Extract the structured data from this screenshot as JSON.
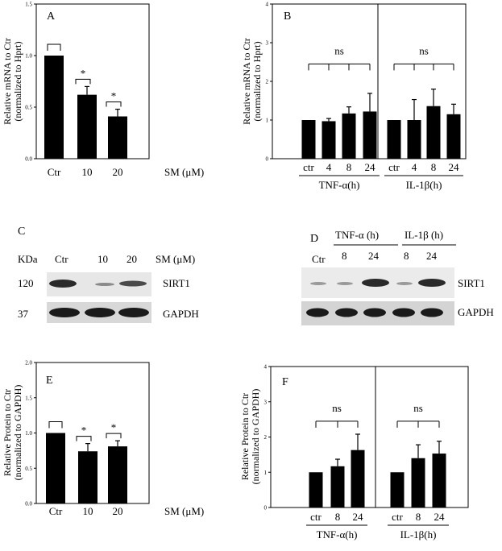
{
  "chart_data": [
    {
      "type": "bar",
      "panel": "A",
      "categories": [
        "Ctr",
        "10",
        "20"
      ],
      "values": [
        1.0,
        0.62,
        0.41
      ],
      "errors": [
        0.0,
        0.08,
        0.07
      ],
      "ylim": [
        0,
        1.5
      ],
      "yticks": [
        "0.0",
        "0.5",
        "1.0",
        "1.5"
      ],
      "ylabel_line1": "Relative  mRNA to Ctr",
      "ylabel_line2": "(normalized  to Hprt)",
      "xunit": "SM (μM)",
      "significance": [
        "*",
        "*"
      ]
    },
    {
      "type": "bar",
      "panel": "B",
      "categories": [
        "ctr",
        "4",
        "8",
        "24",
        "ctr",
        "4",
        "8",
        "24"
      ],
      "values": [
        1.0,
        0.97,
        1.17,
        1.22,
        1.0,
        1.0,
        1.36,
        1.15
      ],
      "errors": [
        0.0,
        0.07,
        0.17,
        0.47,
        0.0,
        0.53,
        0.44,
        0.26
      ],
      "ylim": [
        0,
        4
      ],
      "yticks": [
        "0",
        "1",
        "2",
        "3",
        "4"
      ],
      "ylabel_line1": "Relative  mRNA to Ctr",
      "ylabel_line2": "(normalized  to Hprt)",
      "groups": [
        "TNF-α(h)",
        "IL-1β(h)"
      ],
      "significance": [
        "ns",
        "ns"
      ]
    },
    {
      "type": "bar",
      "panel": "E",
      "categories": [
        "Ctr",
        "10",
        "20"
      ],
      "values": [
        1.0,
        0.74,
        0.81
      ],
      "errors": [
        0.0,
        0.11,
        0.08
      ],
      "ylim": [
        0,
        2.0
      ],
      "yticks": [
        "0.0",
        "0.5",
        "1.0",
        "1.5",
        "2.0"
      ],
      "ylabel_line1": "Relative  Protein  to Ctr",
      "ylabel_line2": "(normalized to GAPDH)",
      "xunit": "SM (μM)",
      "significance": [
        "*",
        "*"
      ]
    },
    {
      "type": "bar",
      "panel": "F",
      "categories": [
        "ctr",
        "8",
        "24",
        "ctr",
        "8",
        "24"
      ],
      "values": [
        1.0,
        1.17,
        1.63,
        1.0,
        1.4,
        1.53
      ],
      "errors": [
        0.0,
        0.2,
        0.45,
        0.0,
        0.38,
        0.35
      ],
      "ylim": [
        0,
        4
      ],
      "yticks": [
        "0",
        "1",
        "2",
        "3",
        "4"
      ],
      "ylabel_line1": "Relative  Protein  to Ctr",
      "ylabel_line2": "(normalized to GAPDH)",
      "groups": [
        "TNF-α(h)",
        "IL-1β(h)"
      ],
      "significance": [
        "ns",
        "ns"
      ]
    }
  ],
  "blot_c": {
    "panel": "C",
    "kda": "KDa",
    "lanes": [
      "Ctr",
      "10",
      "20"
    ],
    "unit": "SM (μM)",
    "markers": [
      "120",
      "37"
    ],
    "proteins": [
      "SIRT1",
      "GAPDH"
    ]
  },
  "blot_d": {
    "panel": "D",
    "ctr": "Ctr",
    "group1": "TNF-α (h)",
    "group2": "IL-1β (h)",
    "lanes": [
      "8",
      "24",
      "8",
      "24"
    ],
    "proteins": [
      "SIRT1",
      "GAPDH"
    ]
  }
}
